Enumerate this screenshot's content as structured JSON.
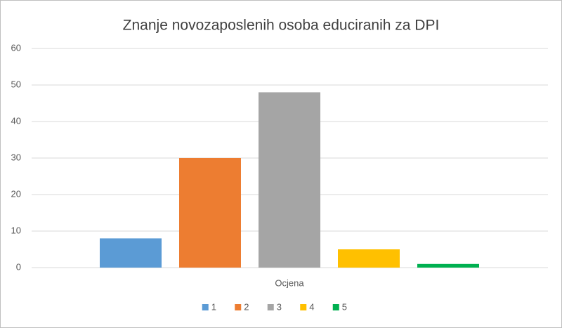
{
  "chart_data": {
    "type": "bar",
    "title": "Znanje novozaposlenih osoba educiranih za DPI",
    "categories": [
      "Ocjena"
    ],
    "series": [
      {
        "name": "1",
        "color": "#5b9bd5",
        "values": [
          8
        ]
      },
      {
        "name": "2",
        "color": "#ed7d31",
        "values": [
          30
        ]
      },
      {
        "name": "3",
        "color": "#a5a5a5",
        "values": [
          48
        ]
      },
      {
        "name": "4",
        "color": "#ffc000",
        "values": [
          5
        ]
      },
      {
        "name": "5",
        "color": "#00b050",
        "values": [
          1
        ]
      }
    ],
    "ylim": [
      0,
      60
    ],
    "yticks": [
      0,
      10,
      20,
      30,
      40,
      50,
      60
    ],
    "grid": true,
    "legend": "bottom"
  }
}
